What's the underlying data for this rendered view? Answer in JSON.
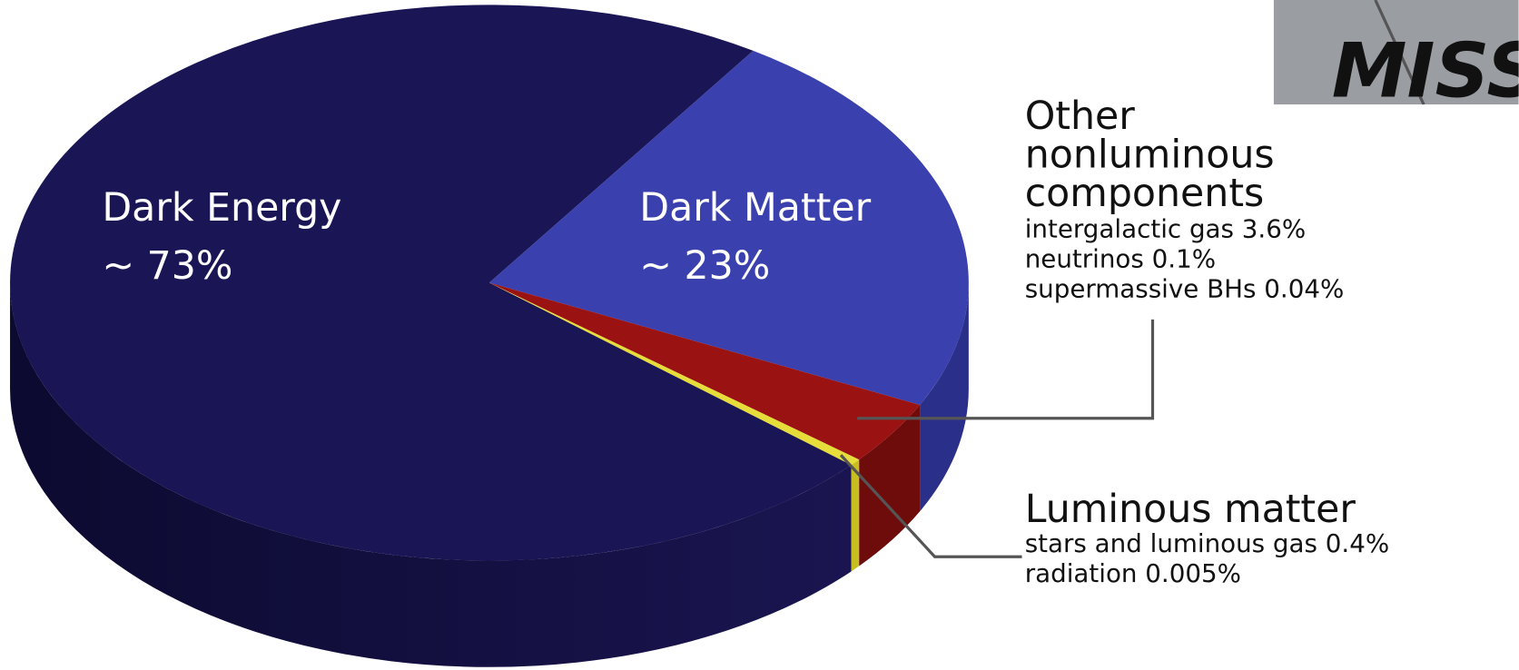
{
  "inset": {
    "text": "MISSIN"
  },
  "chart_data": {
    "type": "pie3d",
    "categories": [
      "Dark Energy",
      "Dark Matter",
      "Other nonluminous components",
      "Luminous matter"
    ],
    "values": [
      73,
      23,
      3.74,
      0.405
    ],
    "value_labels": [
      "~ 73%",
      "~ 23%",
      null,
      null
    ],
    "colors": [
      "#1a1555",
      "#3a40ad",
      "#9a1212",
      "#e6dc3a"
    ],
    "details": [
      null,
      null,
      [
        {
          "name": "intergalactic gas",
          "value": 3.6,
          "value_label": "3.6%"
        },
        {
          "name": "neutrinos",
          "value": 0.1,
          "value_label": "0.1%"
        },
        {
          "name": "supermassive BHs",
          "value": 0.04,
          "value_label": "0.04%"
        }
      ],
      [
        {
          "name": "stars and luminous gas",
          "value": 0.4,
          "value_label": "0.4%"
        },
        {
          "name": "radiation",
          "value": 0.005,
          "value_label": "0.005%"
        }
      ]
    ]
  }
}
